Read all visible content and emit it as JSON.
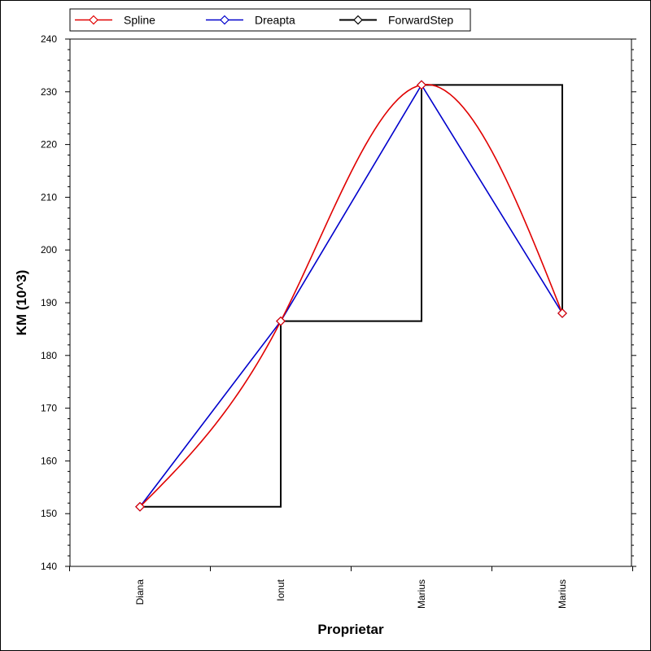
{
  "chart_data": {
    "type": "line",
    "title": "",
    "xlabel": "Proprietar",
    "ylabel": "KM (10^3)",
    "ylim": [
      140,
      240
    ],
    "yticks": [
      140,
      150,
      160,
      170,
      180,
      190,
      200,
      210,
      220,
      230,
      240
    ],
    "categories": [
      "Diana",
      "Ionut",
      "Marius",
      "Marius"
    ],
    "legend_position": "top",
    "grid": false,
    "series": [
      {
        "name": "Spline",
        "style": "spline",
        "color": "#e00000",
        "marker": "diamond",
        "values": [
          151.3,
          186.5,
          231.3,
          188.0
        ]
      },
      {
        "name": "Dreapta",
        "style": "straight",
        "color": "#0000cc",
        "marker": "diamond",
        "values": [
          151.3,
          186.5,
          231.3,
          188.0
        ]
      },
      {
        "name": "ForwardStep",
        "style": "step-forward",
        "color": "#000000",
        "marker": "diamond",
        "values": [
          151.3,
          186.5,
          231.3,
          188.0
        ]
      }
    ]
  }
}
